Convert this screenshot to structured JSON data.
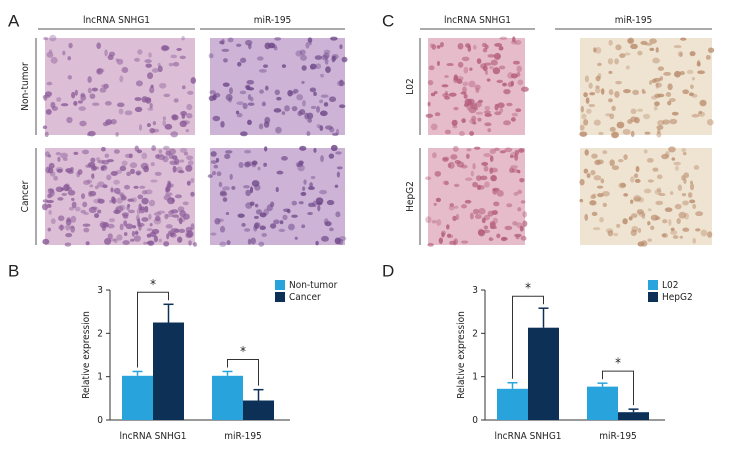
{
  "panel_labels": [
    "A",
    "B",
    "C",
    "D"
  ],
  "histology": [
    {
      "columns": [
        "lncRNA SNHG1",
        "miR-195"
      ],
      "rows": [
        "Non-tumor",
        "Cancer"
      ]
    },
    {
      "columns": [
        "lncRNA SNHG1",
        "miR-195"
      ],
      "rows": [
        "L02",
        "HepG2"
      ]
    }
  ],
  "chart_data": [
    {
      "type": "bar",
      "ylabel": "Relative expression",
      "categories": [
        "lncRNA SNHG1",
        "miR-195"
      ],
      "series": [
        {
          "name": "Non-tumor",
          "color": "#29a3dc",
          "values": [
            1.02,
            1.02
          ],
          "errors": [
            0.1,
            0.1
          ]
        },
        {
          "name": "Cancer",
          "color": "#0d3057",
          "values": [
            2.25,
            0.45
          ],
          "errors": [
            0.42,
            0.25
          ]
        }
      ],
      "annotations": [
        "*",
        "*"
      ],
      "ylim": [
        0,
        3
      ],
      "yticks": [
        0,
        1,
        2,
        3
      ],
      "legend": "upper right"
    },
    {
      "type": "bar",
      "ylabel": "Relative expression",
      "categories": [
        "lncRNA SNHG1",
        "miR-195"
      ],
      "series": [
        {
          "name": "L02",
          "color": "#29a3dc",
          "values": [
            0.72,
            0.77
          ],
          "errors": [
            0.14,
            0.08
          ]
        },
        {
          "name": "HepG2",
          "color": "#0d3057",
          "values": [
            2.13,
            0.18
          ],
          "errors": [
            0.45,
            0.07
          ]
        }
      ],
      "annotations": [
        "*",
        "*"
      ],
      "ylim": [
        0,
        3
      ],
      "yticks": [
        0,
        1,
        2,
        3
      ],
      "legend": "upper right"
    }
  ]
}
